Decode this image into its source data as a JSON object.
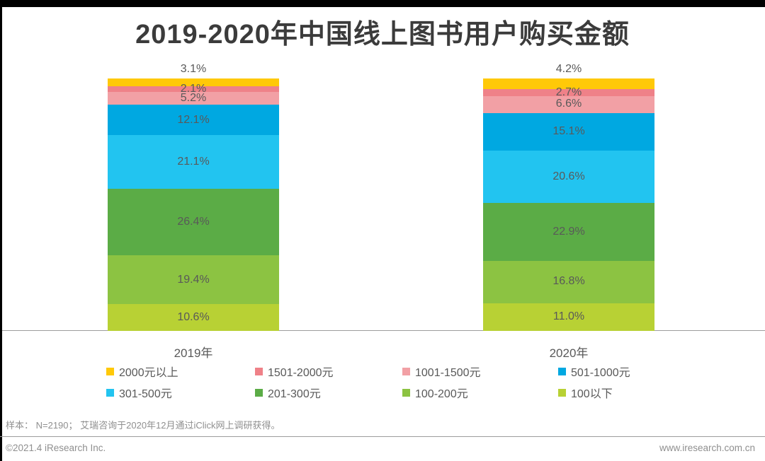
{
  "page": {
    "footnote": "样本： N=2190； 艾瑞咨询于2020年12月通过iClick网上调研获得。",
    "copyright": "©2021.4 iResearch Inc.",
    "website": "www.iresearch.com.cn",
    "border_color": "#000000",
    "background_color": "#FFFFFF"
  },
  "chart_data": {
    "type": "bar",
    "subtype": "stacked-percentage",
    "title": "2019-2020年中国线上图书用户购买金额",
    "categories": [
      "2019年",
      "2020年"
    ],
    "value_unit": "%",
    "ylim": [
      0,
      100
    ],
    "grid": false,
    "legend_position": "bottom",
    "label_color": "#595959",
    "series": [
      {
        "name": "2000元以上",
        "color": "#FFC908",
        "values": [
          3.1,
          4.2
        ]
      },
      {
        "name": "1501-2000元",
        "color": "#EF8188",
        "values": [
          2.1,
          2.7
        ]
      },
      {
        "name": "1001-1500元",
        "color": "#F2A0A5",
        "values": [
          5.2,
          6.6
        ]
      },
      {
        "name": "501-1000元",
        "color": "#00A8E1",
        "values": [
          12.1,
          15.1
        ]
      },
      {
        "name": "301-500元",
        "color": "#22C4F0",
        "values": [
          21.1,
          20.6
        ]
      },
      {
        "name": "201-300元",
        "color": "#5BAC46",
        "values": [
          26.4,
          22.9
        ]
      },
      {
        "name": "100-200元",
        "color": "#8CC342",
        "values": [
          19.4,
          16.8
        ]
      },
      {
        "name": "100以下",
        "color": "#B8D134",
        "values": [
          10.6,
          11.0
        ]
      }
    ]
  }
}
